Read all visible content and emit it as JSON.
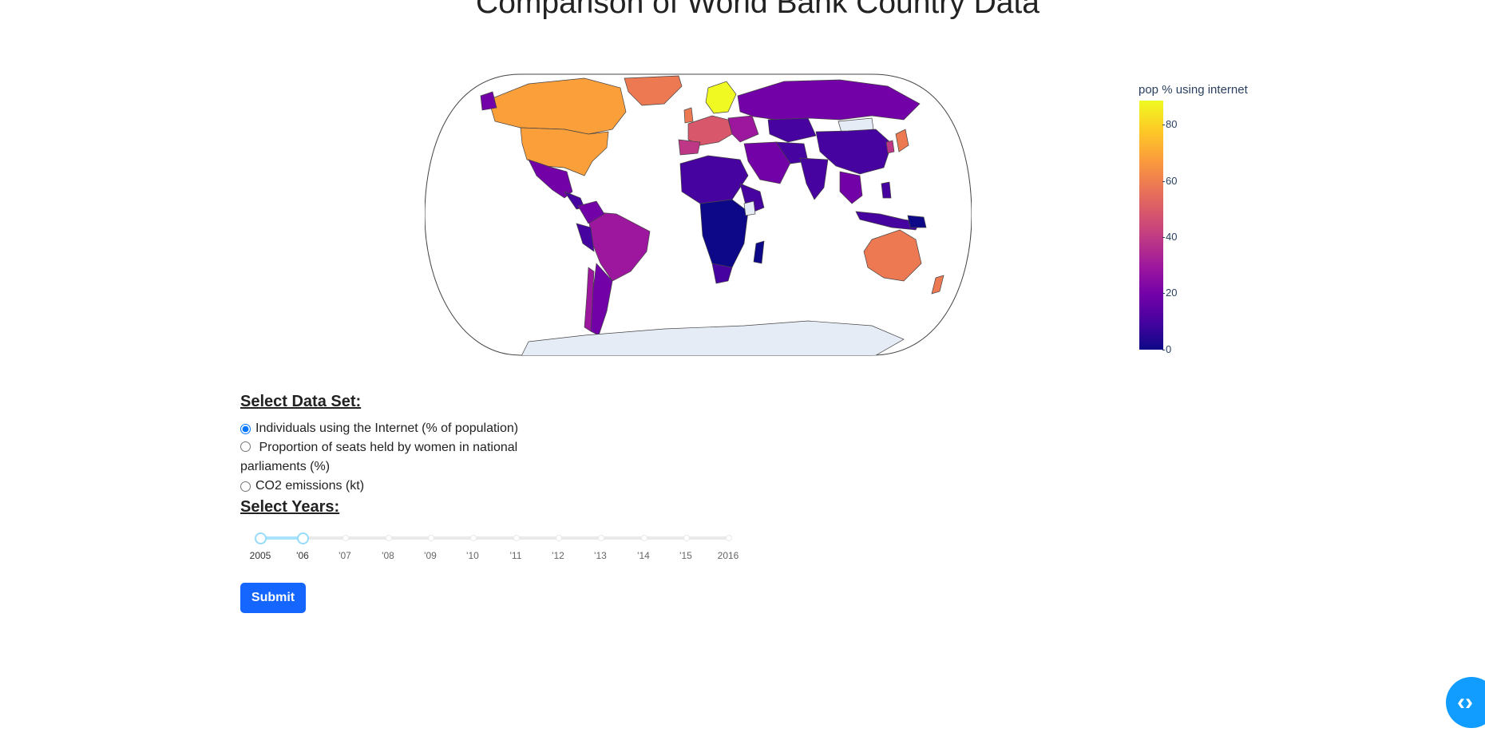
{
  "page": {
    "title": "Comparison of World Bank Country Data"
  },
  "map": {
    "colorbar_title": "pop % using internet",
    "colorbar_ticks": [
      "0",
      "20",
      "40",
      "60",
      "80"
    ],
    "colorscale": [
      "#0d0887",
      "#46039f",
      "#7201a8",
      "#9c179e",
      "#bd3786",
      "#d8576b",
      "#ed7953",
      "#fb9f3a",
      "#fdca26",
      "#f0f921"
    ],
    "no_data_color": "#e5ecf6",
    "border_color": "#444444"
  },
  "controls": {
    "dataset_label": "Select Data Set:",
    "datasets": [
      {
        "label": "Individuals using the Internet (% of population)",
        "checked": true
      },
      {
        "label": "Proportion of seats held by women in national parliaments (%)",
        "checked": false
      },
      {
        "label": "CO2 emissions (kt)",
        "checked": false
      }
    ],
    "years_label": "Select Years:",
    "year_marks": [
      "2005",
      "'06",
      "'07",
      "'08",
      "'09",
      "'10",
      "'11",
      "'12",
      "'13",
      "'14",
      "'15",
      "2016"
    ],
    "selected_range": [
      "2005",
      "'06"
    ],
    "submit_label": "Submit"
  },
  "fab": {
    "icon": "code-brackets-icon",
    "glyph": "‹›",
    "color": "#119dff"
  }
}
